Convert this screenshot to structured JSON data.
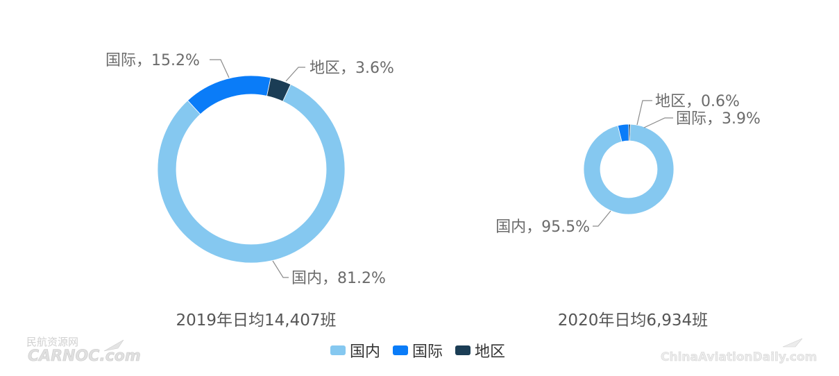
{
  "chart_data": [
    {
      "type": "pie",
      "donut": true,
      "caption": "2019年日均14,407班",
      "slices": [
        {
          "name": "国内",
          "value": 81.2,
          "label": "国内，81.2%"
        },
        {
          "name": "国际",
          "value": 15.2,
          "label": "国际，15.2%"
        },
        {
          "name": "地区",
          "value": 3.6,
          "label": "地区，3.6%"
        }
      ]
    },
    {
      "type": "pie",
      "donut": true,
      "caption": "2020年日均6,934班",
      "slices": [
        {
          "name": "国内",
          "value": 95.5,
          "label": "国内，95.5%"
        },
        {
          "name": "国际",
          "value": 3.9,
          "label": "国际，3.9%"
        },
        {
          "name": "地区",
          "value": 0.6,
          "label": "地区，0.6%"
        }
      ]
    }
  ],
  "legend": {
    "placement": "bottom-center",
    "items": [
      {
        "name": "国内",
        "color": "#85C8F0"
      },
      {
        "name": "国际",
        "color": "#0A7CF8"
      },
      {
        "name": "地区",
        "color": "#1B3D55"
      }
    ]
  },
  "colors": {
    "国内": "#85C8F0",
    "国际": "#0A7CF8",
    "地区": "#1B3D55"
  },
  "watermarks": {
    "left_top": "民航资源网",
    "left_bottom": "CARNOC.com",
    "right": "ChinaAviationDaily.com"
  }
}
